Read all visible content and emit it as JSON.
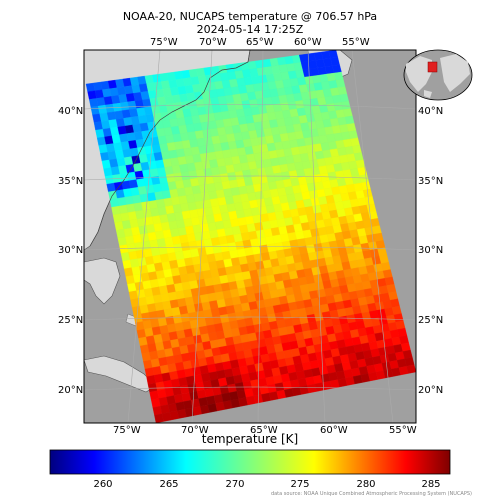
{
  "title": {
    "line1": "NOAA-20, NUCAPS temperature  @ 706.57 hPa",
    "line2": "2024-05-14 17:25Z"
  },
  "lon_ticks_top": [
    "75°W",
    "70°W",
    "65°W",
    "60°W",
    "55°W"
  ],
  "lon_ticks_bottom": [
    "75°W",
    "70°W",
    "65°W",
    "60°W",
    "55°W"
  ],
  "lat_ticks_left": [
    "40°N",
    "35°N",
    "30°N",
    "25°N",
    "20°N"
  ],
  "lat_ticks_right": [
    "40°N",
    "35°N",
    "30°N",
    "25°N",
    "20°N"
  ],
  "colorbar": {
    "label": "temperature [K]",
    "ticks": [
      "260",
      "265",
      "270",
      "275",
      "280",
      "285"
    ],
    "min": 255.5,
    "max": 286.0,
    "colormap": "jet"
  },
  "credit": "data source: NOAA Unique Combined Atmospheric Processing System (NUCAPS)",
  "colors": {
    "ocean": "#a0a0a0",
    "land": "#d9d9d9",
    "frame": "#000000"
  }
}
